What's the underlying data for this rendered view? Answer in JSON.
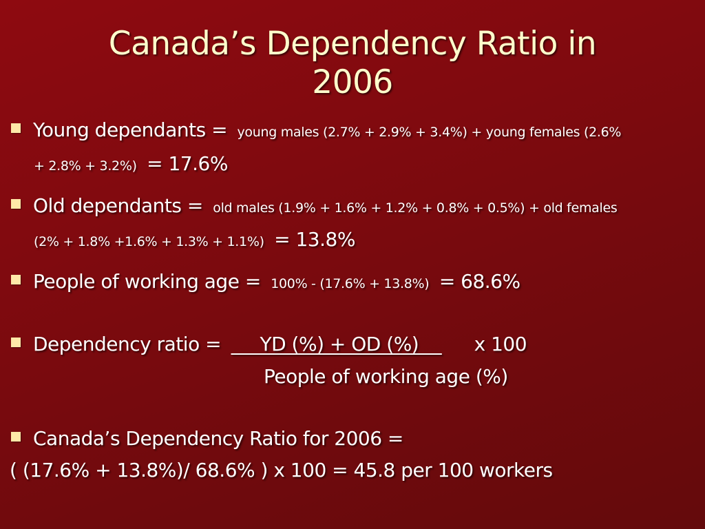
{
  "slide": {
    "title_line1": "Canada’s Dependency Ratio in",
    "title_line2": "2006",
    "bullets": [
      {
        "label": "Young dependants =",
        "detail_line1": "young males (2.7% + 2.9% + 3.4%) + young females (2.6%",
        "detail_line2": "+ 2.8% + 3.2%)",
        "result": "= 17.6%"
      },
      {
        "label": "Old dependants =",
        "detail_line1": "old males (1.9% + 1.6% + 1.2% + 0.8% + 0.5%) + old females",
        "detail_line2": "(2% + 1.8% +1.6% + 1.3% + 1.1%)",
        "result": "= 13.8%"
      },
      {
        "label": "People of working age =",
        "detail": "100% - (17.6% + 13.8%)",
        "result": "= 68.6%"
      },
      {
        "label": "Dependency ratio =",
        "numerator": "     YD (%) + OD (%)    ",
        "multiplier": "x 100",
        "denominator": "People of working age (%)"
      },
      {
        "label": "Canada’s Dependency Ratio for 2006 ="
      }
    ],
    "final_line": "( (17.6% + 13.8%)/ 68.6% ) x 100 = 45.8 per 100 workers"
  },
  "colors": {
    "background": "#800a0f",
    "title": "#ffffcc",
    "text": "#ffffff",
    "bullet": "#ffe8a8"
  }
}
